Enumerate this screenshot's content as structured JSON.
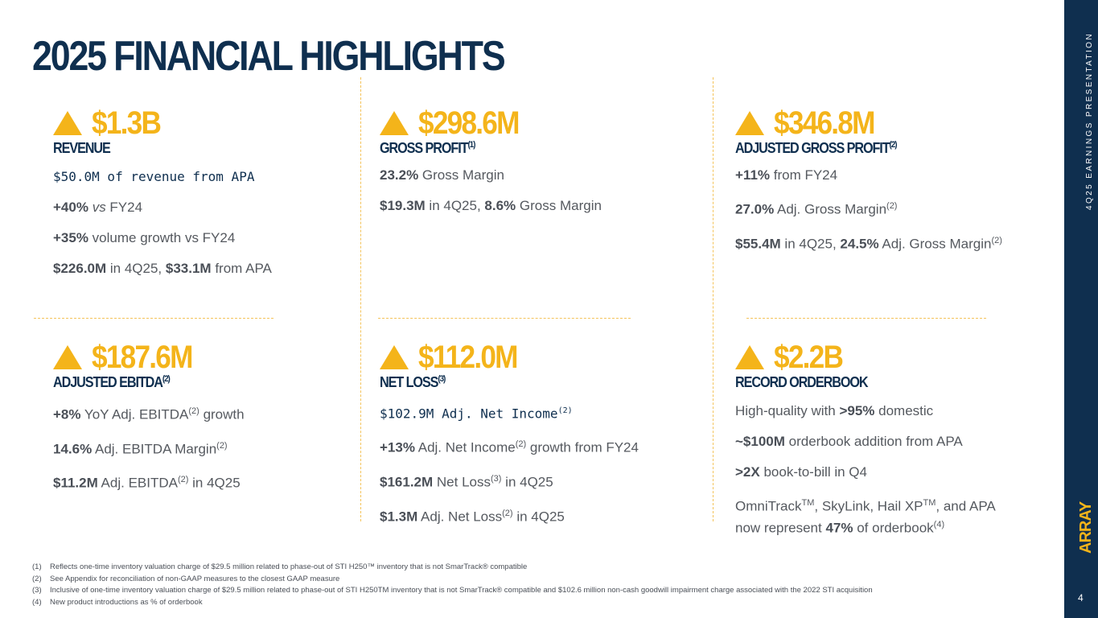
{
  "title": "2025 FINANCIAL HIGHLIGHTS",
  "sidebar": {
    "text": "4Q25 EARNINGS PRESENTATION",
    "logo": "ARRAY",
    "page": "4"
  },
  "colors": {
    "navy": "#0f2f4f",
    "gold": "#f4b41a",
    "text": "#4a4f57"
  },
  "metrics": {
    "revenue": {
      "value": "$1.3B",
      "label": "REVENUE",
      "sup": "",
      "mono": "$50.0M of revenue from APA",
      "l1b": "+40%",
      "l1i": "vs",
      "l1": " FY24",
      "l2b": "+35%",
      "l2": " volume growth vs FY24",
      "l3b": "$226.0M",
      "l3a": " in 4Q25, ",
      "l3b2": "$33.1M",
      "l3c": " from APA"
    },
    "gross_profit": {
      "value": "$298.6M",
      "label": "GROSS PROFIT",
      "sup": "(1)",
      "l1b": "23.2%",
      "l1": " Gross Margin",
      "l2b": "$19.3M",
      "l2a": " in 4Q25, ",
      "l2b2": "8.6%",
      "l2c": " Gross Margin"
    },
    "adj_gross_profit": {
      "value": "$346.8M",
      "label": "ADJUSTED GROSS PROFIT",
      "sup": "(2)",
      "l1b": "+11%",
      "l1": " from FY24",
      "l2b": "27.0%",
      "l2": " Adj. Gross Margin",
      "l2s": "(2)",
      "l3b": "$55.4M",
      "l3a": " in 4Q25, ",
      "l3b2": "24.5%",
      "l3c": " Adj. Gross Margin",
      "l3s": "(2)"
    },
    "adj_ebitda": {
      "value": "$187.6M",
      "label": "ADJUSTED EBITDA",
      "sup": "(2)",
      "l1b": "+8%",
      "l1": " YoY Adj. EBITDA",
      "l1s": "(2)",
      "l1c": " growth",
      "l2b": "14.6%",
      "l2": " Adj. EBITDA Margin",
      "l2s": "(2)",
      "l3b": "$11.2M",
      "l3": " Adj. EBITDA",
      "l3s": "(2)",
      "l3c": " in 4Q25"
    },
    "net_loss": {
      "value": "$112.0M",
      "label": "NET LOSS",
      "sup": "(3)",
      "mono": "$102.9M Adj. Net Income",
      "mono_sup": "(2)",
      "l1b": "+13%",
      "l1": " Adj. Net Income",
      "l1s": "(2)",
      "l1c": " growth from FY24",
      "l2b": "$161.2M",
      "l2": " Net Loss",
      "l2s": "(3)",
      "l2c": " in 4Q25",
      "l3b": "$1.3M",
      "l3": " Adj. Net Loss",
      "l3s": "(2)",
      "l3c": " in 4Q25"
    },
    "orderbook": {
      "value": "$2.2B",
      "label": "RECORD ORDERBOOK",
      "sup": "",
      "l1": "High-quality with ",
      "l1b": ">95%",
      "l1c": " domestic",
      "l2b": "~$100M",
      "l2": " orderbook addition from APA",
      "l3b": ">2X",
      "l3": " book-to-bill in Q4",
      "l4": "OmniTrack",
      "l4s": "TM",
      "l4a": ", SkyLink, Hail XP",
      "l4s2": "TM",
      "l4b": ", and APA",
      "l5": "now represent ",
      "l5b": "47%",
      "l5c": " of orderbook",
      "l5s": "(4)"
    }
  },
  "footnotes": [
    {
      "n": "(1)",
      "text": "Reflects one-time inventory valuation charge of $29.5 million related to phase-out of STI H250™ inventory that is not SmarTrack® compatible"
    },
    {
      "n": "(2)",
      "text": "See Appendix for reconciliation of non-GAAP measures to the closest GAAP measure"
    },
    {
      "n": "(3)",
      "text": "Inclusive of one-time inventory valuation charge of $29.5 million related to phase-out of STI H250TM  inventory that is not SmarTrack® compatible and $102.6 million non-cash goodwill impairment charge associated with the 2022 STI acquisition"
    },
    {
      "n": "(4)",
      "text": "New product introductions as % of orderbook"
    }
  ]
}
